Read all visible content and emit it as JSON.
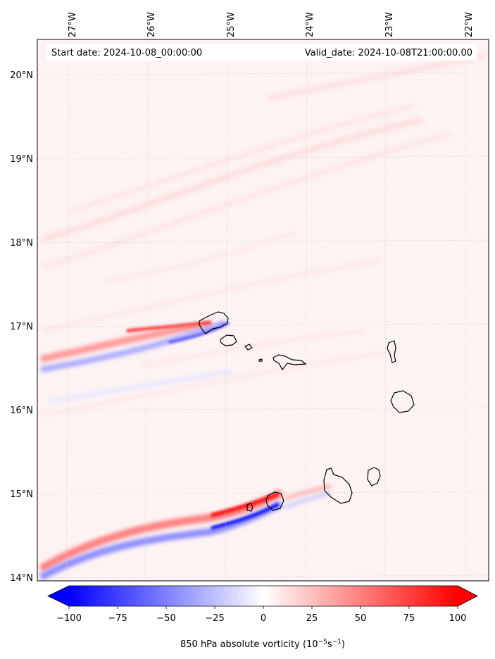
{
  "header": {
    "start_date": "Start date: 2024-10-08_00:00:00",
    "valid_date": "Valid_date: 2024-10-08T21:00:00.00"
  },
  "map": {
    "lon_labels": [
      "27°W",
      "26°W",
      "25°W",
      "24°W",
      "23°W",
      "22°W"
    ],
    "lat_labels": [
      "20°N",
      "19°N",
      "18°N",
      "17°N",
      "16°N",
      "15°N",
      "14°N"
    ],
    "background_color": "#fdf3f3",
    "gridline_color": "#cfcfcf",
    "coastline_color": "#000000"
  },
  "colorbar": {
    "tick_labels": [
      "−100",
      "−75",
      "−50",
      "−25",
      "0",
      "25",
      "50",
      "75",
      "100"
    ],
    "label_prefix": "850 hPa absolute vorticity (10",
    "label_exp1": "−5",
    "label_mid": "s",
    "label_exp2": "−1",
    "label_suffix": ")",
    "min_color": "#0000ff",
    "mid_color": "#ffffff",
    "max_color": "#ff0000"
  }
}
